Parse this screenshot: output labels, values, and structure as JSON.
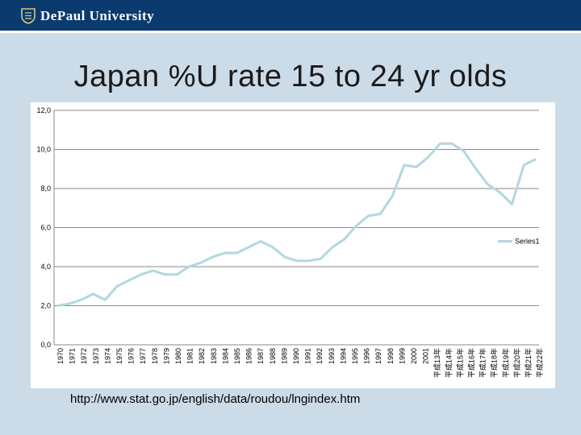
{
  "header": {
    "logo_text": "DePaul University",
    "brand_color": "#0b3a6e"
  },
  "slide": {
    "title": "Japan %U rate 15 to 24 yr olds",
    "source": "http://www.stat.go.jp/english/data/roudou/lngindex.htm"
  },
  "chart_data": {
    "type": "line",
    "title": "",
    "xlabel": "",
    "ylabel": "",
    "ylim": [
      0,
      12
    ],
    "yticks": [
      "0,0",
      "2,0",
      "4,0",
      "6,0",
      "8,0",
      "10,0",
      "12,0"
    ],
    "ytick_values": [
      0,
      2,
      4,
      6,
      8,
      10,
      12
    ],
    "grid": "horizontal",
    "legend_position": "right",
    "year_labels": [
      "1970",
      "1971",
      "1972",
      "1973",
      "1974",
      "1975",
      "1976",
      "1977",
      "1978",
      "1979",
      "1980",
      "1981",
      "1982",
      "1983",
      "1984",
      "1985",
      "1986",
      "1987",
      "1988",
      "1989",
      "1990",
      "1991",
      "1992",
      "1993",
      "1994",
      "1995",
      "1996",
      "1997",
      "1998",
      "1999",
      "2000",
      "2001"
    ],
    "tail_labels": [
      "平成13年",
      "平成14年",
      "平成15年",
      "平成16年",
      "平成17年",
      "平成18年",
      "平成19年",
      "平成20年",
      "平成21年",
      "平成22年"
    ],
    "series": [
      {
        "name": "Series1",
        "color": "#b3d7df",
        "x": [
          1970,
          1971,
          1972,
          1973,
          1974,
          1975,
          1976,
          1977,
          1978,
          1979,
          1980,
          1981,
          1982,
          1983,
          1984,
          1985,
          1986,
          1987,
          1988,
          1989,
          1990,
          1991,
          1992,
          1993,
          1994,
          1995,
          1996,
          1997,
          1998,
          1999,
          2000,
          2001,
          2002,
          2003,
          2004,
          2005,
          2006,
          2007,
          2008,
          2009,
          2010
        ],
        "values": [
          2.0,
          2.1,
          2.3,
          2.6,
          2.3,
          3.0,
          3.3,
          3.6,
          3.8,
          3.6,
          3.6,
          4.0,
          4.2,
          4.5,
          4.7,
          4.7,
          5.0,
          5.3,
          5.0,
          4.5,
          4.3,
          4.3,
          4.4,
          5.0,
          5.4,
          6.1,
          6.6,
          6.7,
          7.6,
          9.2,
          9.1,
          9.6,
          10.3,
          10.3,
          9.9,
          9.0,
          8.2,
          7.8,
          7.2,
          9.2,
          9.5
        ]
      }
    ]
  }
}
